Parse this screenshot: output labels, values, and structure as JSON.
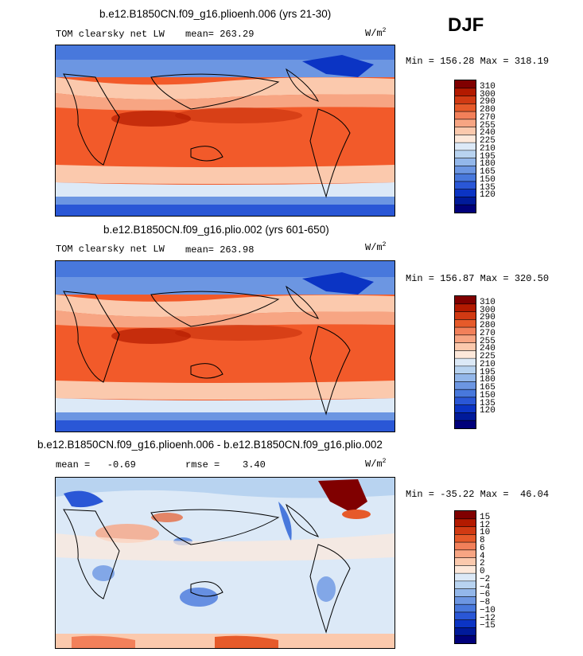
{
  "season": "DJF",
  "panels": [
    {
      "title": "b.e12.B1850CN.f09_g16.plioenh.006 (yrs 21-30)",
      "left": "TOM clearsky net LW",
      "mid": "mean= 263.29",
      "units": "W/m",
      "units_exp": "2",
      "minmax": "Min = 156.28 Max = 318.19",
      "colorbar": {
        "colors": [
          "#800000",
          "#b31a00",
          "#d13a13",
          "#e65a2a",
          "#f2805a",
          "#f7a583",
          "#fbc9ad",
          "#fde8da",
          "#dce9f7",
          "#b8d3f0",
          "#93b7ea",
          "#6c96e2",
          "#4878dc",
          "#2a57d6",
          "#0b34c4",
          "#001a9a",
          "#00007a"
        ],
        "ticks": [
          "310",
          "300",
          "290",
          "280",
          "270",
          "255",
          "240",
          "225",
          "210",
          "195",
          "180",
          "165",
          "150",
          "135",
          "120"
        ]
      }
    },
    {
      "title": "b.e12.B1850CN.f09_g16.plio.002 (yrs 601-650)",
      "left": "TOM clearsky net LW",
      "mid": "mean= 263.98",
      "units": "W/m",
      "units_exp": "2",
      "minmax": "Min = 156.87 Max = 320.50",
      "colorbar": {
        "colors": [
          "#800000",
          "#b31a00",
          "#d13a13",
          "#e65a2a",
          "#f2805a",
          "#f7a583",
          "#fbc9ad",
          "#fde8da",
          "#dce9f7",
          "#b8d3f0",
          "#93b7ea",
          "#6c96e2",
          "#4878dc",
          "#2a57d6",
          "#0b34c4",
          "#001a9a",
          "#00007a"
        ],
        "ticks": [
          "310",
          "300",
          "290",
          "280",
          "270",
          "255",
          "240",
          "225",
          "210",
          "195",
          "180",
          "165",
          "150",
          "135",
          "120"
        ]
      }
    },
    {
      "title": "b.e12.B1850CN.f09_g16.plioenh.006 - b.e12.B1850CN.f09_g16.plio.002",
      "left": "mean =   -0.69",
      "mid": "rmse =    3.40",
      "units": "W/m",
      "units_exp": "2",
      "minmax": "Min = -35.22 Max =  46.04",
      "colorbar": {
        "colors": [
          "#800000",
          "#b31a00",
          "#d13a13",
          "#e65a2a",
          "#f2805a",
          "#f7a583",
          "#fbc9ad",
          "#fde8da",
          "#dce9f7",
          "#b8d3f0",
          "#93b7ea",
          "#6c96e2",
          "#4878dc",
          "#2a57d6",
          "#0b34c4",
          "#001a9a",
          "#00007a"
        ],
        "ticks": [
          "15",
          "12",
          "10",
          "8",
          "6",
          "4",
          "2",
          "0",
          "−2",
          "−4",
          "−6",
          "−8",
          "−10",
          "−12",
          "−15"
        ]
      }
    }
  ],
  "chart_data": [
    {
      "type": "heatmap",
      "title": "b.e12.B1850CN.f09_g16.plioenh.006 (yrs 21-30)",
      "variable": "TOM clearsky net LW",
      "units": "W/m2",
      "mean": 263.29,
      "min": 156.28,
      "max": 318.19,
      "levels": [
        120,
        135,
        150,
        165,
        180,
        195,
        210,
        225,
        240,
        255,
        270,
        280,
        290,
        300,
        310
      ],
      "region": "global map"
    },
    {
      "type": "heatmap",
      "title": "b.e12.B1850CN.f09_g16.plio.002 (yrs 601-650)",
      "variable": "TOM clearsky net LW",
      "units": "W/m2",
      "mean": 263.98,
      "min": 156.87,
      "max": 320.5,
      "levels": [
        120,
        135,
        150,
        165,
        180,
        195,
        210,
        225,
        240,
        255,
        270,
        280,
        290,
        300,
        310
      ],
      "region": "global map"
    },
    {
      "type": "heatmap",
      "title": "b.e12.B1850CN.f09_g16.plioenh.006 - b.e12.B1850CN.f09_g16.plio.002",
      "units": "W/m2",
      "mean": -0.69,
      "rmse": 3.4,
      "min": -35.22,
      "max": 46.04,
      "levels": [
        -15,
        -12,
        -10,
        -8,
        -6,
        -4,
        -2,
        0,
        2,
        4,
        6,
        8,
        10,
        12,
        15
      ],
      "region": "global map"
    }
  ]
}
